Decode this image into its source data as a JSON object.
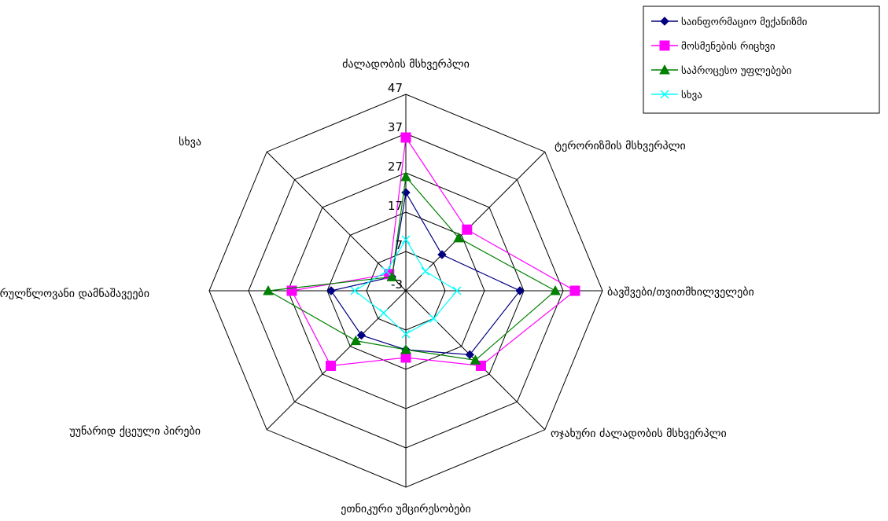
{
  "chart_data": {
    "type": "radar",
    "categories": [
      "ძალადობის მსხვერპლი",
      "ტერორიზმის მსხვერპლი",
      "ბავშვები/თვითმხილველები",
      "ოჯახური ძალადობის მსხვერპლი",
      "ეთნიკური უმცირესობები",
      "უუნარიდ ქცეული პირები",
      "არასრულწლოვანი დამნაშავეები",
      "სხვა"
    ],
    "series": [
      {
        "name": "საინფორმაციო მექანიზმი",
        "color": "#000080",
        "marker": "diamond",
        "values": [
          22,
          10,
          26,
          20,
          12,
          13,
          16,
          2
        ]
      },
      {
        "name": "მოსმენების რიცხვი",
        "color": "#FF00FF",
        "marker": "square",
        "values": [
          36,
          19,
          40,
          24,
          14,
          24,
          26,
          3
        ]
      },
      {
        "name": "საპროცესო უფლებები",
        "color": "#008000",
        "marker": "triangle",
        "values": [
          26,
          16,
          35,
          22,
          12,
          15,
          32,
          2
        ]
      },
      {
        "name": "სხვა",
        "color": "#00FFFF",
        "marker": "x",
        "values": [
          10,
          4,
          10,
          7,
          8,
          5,
          10,
          4
        ]
      }
    ],
    "rlim": [
      -3,
      47
    ],
    "ticks": [
      -3,
      7,
      17,
      27,
      37,
      47
    ],
    "legend_position": "top-right",
    "grid": true
  }
}
